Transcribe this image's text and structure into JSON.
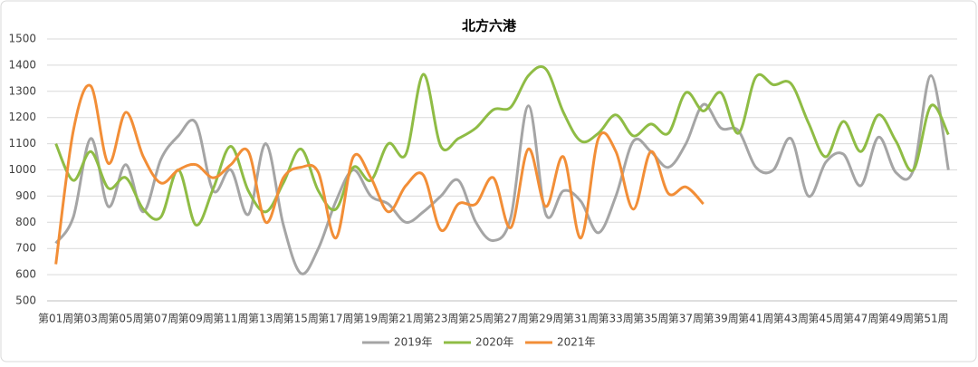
{
  "chart_data": {
    "type": "line",
    "title": "北方六港",
    "categories": [
      "第01周",
      null,
      "第03周",
      null,
      "第05周",
      null,
      "第07周",
      null,
      "第09周",
      null,
      "第11周",
      null,
      "第13周",
      null,
      "第15周",
      null,
      "第17周",
      null,
      "第19周",
      null,
      "第21周",
      null,
      "第23周",
      null,
      "第25周",
      null,
      "第27周",
      null,
      "第29周",
      null,
      "第31周",
      null,
      "第33周",
      null,
      "第35周",
      null,
      "第37周",
      null,
      "第39周",
      null,
      "第41周",
      null,
      "第43周",
      null,
      "第45周",
      null,
      "第47周",
      null,
      "第49周",
      null,
      "第51周",
      null
    ],
    "series": [
      {
        "name": "2019年",
        "color": "#a5a5a5",
        "values": [
          720,
          820,
          1120,
          860,
          1020,
          840,
          1040,
          1130,
          1180,
          920,
          1000,
          830,
          1100,
          790,
          605,
          700,
          880,
          1000,
          900,
          870,
          800,
          840,
          900,
          960,
          800,
          730,
          820,
          1245,
          830,
          920,
          880,
          760,
          900,
          1110,
          1070,
          1010,
          1100,
          1250,
          1160,
          1150,
          1010,
          1000,
          1120,
          900,
          1030,
          1060,
          940,
          1125,
          990,
          1000,
          1360,
          1000
        ]
      },
      {
        "name": "2020年",
        "color": "#8fbc45",
        "values": [
          1100,
          960,
          1070,
          930,
          970,
          850,
          820,
          1000,
          790,
          930,
          1090,
          920,
          840,
          950,
          1080,
          920,
          850,
          1010,
          960,
          1100,
          1060,
          1365,
          1090,
          1120,
          1160,
          1230,
          1240,
          1360,
          1385,
          1220,
          1110,
          1140,
          1210,
          1130,
          1175,
          1140,
          1295,
          1225,
          1295,
          1140,
          1355,
          1325,
          1330,
          1180,
          1050,
          1185,
          1070,
          1210,
          1110,
          1000,
          1245,
          1135
        ]
      },
      {
        "name": "2021年",
        "color": "#f28e37",
        "values": [
          640,
          1150,
          1320,
          1025,
          1220,
          1050,
          950,
          1000,
          1020,
          970,
          1020,
          1070,
          800,
          970,
          1010,
          990,
          740,
          1050,
          970,
          840,
          940,
          980,
          770,
          870,
          870,
          970,
          780,
          1080,
          860,
          1050,
          740,
          1120,
          1070,
          850,
          1070,
          910,
          935,
          870,
          null,
          null,
          null,
          null,
          null,
          null,
          null,
          null,
          null,
          null,
          null,
          null,
          null,
          null
        ]
      }
    ],
    "ylim": [
      500,
      1500
    ],
    "yticks": [
      500,
      600,
      700,
      800,
      900,
      1000,
      1100,
      1200,
      1300,
      1400,
      1500
    ],
    "grid": true,
    "legend": "bottom"
  }
}
